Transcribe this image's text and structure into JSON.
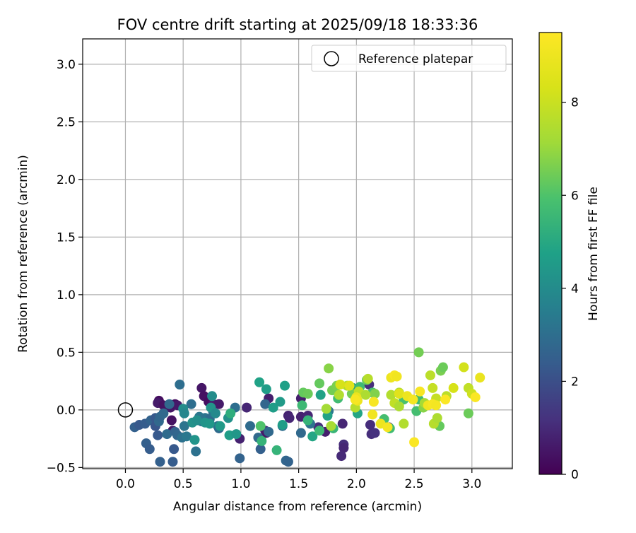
{
  "chart_data": {
    "type": "scatter",
    "title": "FOV centre drift starting at 2025/09/18 18:33:36",
    "xlabel": "Angular distance from reference (arcmin)",
    "ylabel": "Rotation from reference (arcmin)",
    "xlim": [
      -0.37,
      3.35
    ],
    "ylim": [
      -0.51,
      3.22
    ],
    "xticks": [
      0.0,
      0.5,
      1.0,
      1.5,
      2.0,
      2.5,
      3.0
    ],
    "xtick_labels": [
      "0.0",
      "0.5",
      "1.0",
      "1.5",
      "2.0",
      "2.5",
      "3.0"
    ],
    "yticks": [
      -0.5,
      0.0,
      0.5,
      1.0,
      1.5,
      2.0,
      2.5,
      3.0
    ],
    "ytick_labels": [
      "−0.5",
      "0.0",
      "0.5",
      "1.0",
      "1.5",
      "2.0",
      "2.5",
      "3.0"
    ],
    "grid": true,
    "legend": {
      "position": "top-right",
      "entries": [
        "Reference platepar"
      ]
    },
    "reference": {
      "label": "Reference platepar",
      "x": 0.0,
      "y": 0.0
    },
    "colorbar": {
      "label": "Hours from first FF file",
      "colormap": "viridis",
      "range": [
        0,
        9.5
      ],
      "ticks": [
        0,
        2,
        4,
        6,
        8
      ],
      "tick_labels": [
        "0",
        "2",
        "4",
        "6",
        "8"
      ]
    },
    "series": [
      {
        "points": [
          [
            0.29,
            0.08,
            0.3
          ],
          [
            0.28,
            0.06,
            0.6
          ],
          [
            0.33,
            0.04,
            0.4
          ],
          [
            0.39,
            0.02,
            0.5
          ],
          [
            0.4,
            -0.09,
            0.4
          ],
          [
            0.41,
            -0.18,
            0.5
          ],
          [
            0.43,
            0.05,
            0.3
          ],
          [
            0.45,
            0.04,
            0.6
          ],
          [
            0.66,
            0.19,
            0.5
          ],
          [
            0.68,
            0.12,
            0.4
          ],
          [
            0.72,
            0.07,
            0.3
          ],
          [
            0.76,
            0.05,
            0.7
          ],
          [
            0.81,
            0.05,
            0.6
          ],
          [
            0.99,
            -0.25,
            0.8
          ],
          [
            1.05,
            0.02,
            0.9
          ],
          [
            1.21,
            -0.18,
            0.9
          ],
          [
            1.22,
            -0.2,
            0.6
          ],
          [
            1.24,
            0.1,
            0.7
          ],
          [
            1.41,
            -0.05,
            0.8
          ],
          [
            1.42,
            -0.07,
            0.9
          ],
          [
            1.52,
            0.1,
            0.7
          ],
          [
            1.52,
            -0.06,
            0.8
          ],
          [
            1.58,
            -0.05,
            0.9
          ],
          [
            1.67,
            -0.15,
            1.1
          ],
          [
            1.73,
            -0.19,
            0.7
          ],
          [
            1.88,
            -0.12,
            0.9
          ],
          [
            1.89,
            -0.3,
            1.1
          ],
          [
            1.89,
            -0.33,
            0.9
          ],
          [
            1.87,
            -0.4,
            1.0
          ],
          [
            2.11,
            0.22,
            1.1
          ],
          [
            2.12,
            -0.13,
            1.1
          ],
          [
            2.13,
            -0.21,
            1.1
          ],
          [
            2.16,
            -0.2,
            1.2
          ],
          [
            2.28,
            -0.15,
            1.2
          ]
        ]
      },
      {
        "points": [
          [
            0.08,
            -0.15,
            2.5
          ],
          [
            0.12,
            -0.13,
            2.3
          ],
          [
            0.17,
            -0.12,
            2.4
          ],
          [
            0.18,
            -0.29,
            2.5
          ],
          [
            0.21,
            -0.34,
            2.4
          ],
          [
            0.22,
            -0.09,
            2.6
          ],
          [
            0.26,
            -0.07,
            2.3
          ],
          [
            0.26,
            -0.14,
            2.2
          ],
          [
            0.28,
            -0.22,
            2.3
          ],
          [
            0.29,
            -0.1,
            2.8
          ],
          [
            0.3,
            -0.45,
            2.5
          ],
          [
            0.3,
            -0.06,
            2.7
          ],
          [
            0.33,
            -0.03,
            2.8
          ],
          [
            0.36,
            -0.21,
            2.9
          ],
          [
            0.38,
            0.05,
            2.8
          ],
          [
            0.42,
            -0.34,
            2.3
          ],
          [
            0.41,
            -0.45,
            2.4
          ],
          [
            0.43,
            -0.19,
            2.6
          ],
          [
            0.45,
            -0.22,
            2.7
          ],
          [
            0.47,
            0.22,
            3.0
          ],
          [
            0.49,
            -0.24,
            3.1
          ],
          [
            0.51,
            -0.14,
            3.2
          ],
          [
            0.53,
            -0.23,
            3.3
          ],
          [
            0.57,
            0.05,
            3.0
          ],
          [
            0.61,
            -0.36,
            3.1
          ],
          [
            0.64,
            -0.06,
            3.3
          ],
          [
            0.66,
            -0.1,
            3.2
          ],
          [
            0.69,
            -0.07,
            3.2
          ],
          [
            0.73,
            -0.08,
            2.9
          ],
          [
            0.76,
            -0.02,
            3.1
          ],
          [
            0.8,
            -0.14,
            3.0
          ],
          [
            0.81,
            -0.16,
            2.9
          ],
          [
            0.95,
            0.02,
            3.0
          ],
          [
            0.99,
            -0.42,
            2.6
          ],
          [
            1.08,
            -0.14,
            2.9
          ],
          [
            1.15,
            -0.24,
            2.8
          ],
          [
            1.17,
            -0.34,
            2.5
          ],
          [
            1.21,
            0.05,
            2.7
          ],
          [
            1.24,
            -0.19,
            2.8
          ],
          [
            1.36,
            -0.14,
            3.0
          ],
          [
            1.39,
            -0.44,
            2.7
          ],
          [
            1.41,
            -0.45,
            2.6
          ],
          [
            1.52,
            -0.2,
            2.8
          ],
          [
            1.6,
            -0.12,
            3.2
          ],
          [
            1.76,
            -0.01,
            3.3
          ]
        ]
      },
      {
        "points": [
          [
            0.5,
            0.01,
            4.0
          ],
          [
            0.51,
            -0.03,
            3.8
          ],
          [
            0.58,
            -0.11,
            4.2
          ],
          [
            0.6,
            -0.26,
            4.3
          ],
          [
            0.62,
            -0.09,
            4.1
          ],
          [
            0.69,
            -0.11,
            4.3
          ],
          [
            0.73,
            -0.12,
            4.4
          ],
          [
            0.74,
            0.02,
            4.3
          ],
          [
            0.75,
            0.12,
            4.0
          ],
          [
            0.78,
            -0.03,
            3.9
          ],
          [
            0.82,
            -0.14,
            4.5
          ],
          [
            0.89,
            -0.07,
            4.2
          ],
          [
            0.9,
            -0.22,
            4.6
          ],
          [
            0.96,
            -0.21,
            4.4
          ],
          [
            1.16,
            0.24,
            4.8
          ],
          [
            1.22,
            0.18,
            4.6
          ],
          [
            1.28,
            0.02,
            4.6
          ],
          [
            1.34,
            0.07,
            4.5
          ],
          [
            1.36,
            -0.13,
            4.6
          ],
          [
            1.38,
            0.21,
            4.7
          ],
          [
            1.62,
            -0.23,
            4.9
          ],
          [
            1.69,
            0.13,
            4.8
          ],
          [
            1.75,
            -0.05,
            4.8
          ],
          [
            1.97,
            0.19,
            4.6
          ],
          [
            2.01,
            -0.03,
            4.9
          ]
        ]
      },
      {
        "points": [
          [
            0.91,
            -0.03,
            5.2
          ],
          [
            1.18,
            -0.27,
            5.4
          ],
          [
            1.31,
            -0.35,
            5.4
          ],
          [
            1.53,
            0.04,
            5.6
          ],
          [
            1.58,
            -0.09,
            5.4
          ],
          [
            1.68,
            -0.18,
            5.6
          ],
          [
            1.8,
            -0.16,
            5.5
          ],
          [
            1.84,
            0.1,
            5.7
          ],
          [
            2.03,
            0.2,
            5.6
          ],
          [
            2.14,
            0.15,
            5.9
          ],
          [
            2.24,
            -0.08,
            5.8
          ],
          [
            2.29,
            -0.16,
            5.7
          ],
          [
            2.41,
            0.09,
            5.9
          ],
          [
            2.52,
            -0.01,
            5.8
          ],
          [
            2.54,
            0.09,
            5.7
          ]
        ]
      },
      {
        "points": [
          [
            1.17,
            -0.14,
            6.0
          ],
          [
            1.54,
            0.15,
            6.3
          ],
          [
            1.58,
            0.14,
            6.4
          ],
          [
            1.68,
            0.23,
            6.3
          ],
          [
            1.76,
            0.36,
            6.8
          ],
          [
            1.79,
            0.17,
            6.5
          ],
          [
            1.83,
            0.21,
            6.6
          ],
          [
            1.96,
            0.14,
            6.5
          ],
          [
            2.09,
            0.26,
            6.4
          ],
          [
            2.16,
            0.14,
            6.7
          ],
          [
            2.54,
            0.5,
            6.5
          ],
          [
            2.58,
            0.02,
            6.8
          ],
          [
            2.73,
            0.34,
            6.6
          ],
          [
            2.75,
            0.37,
            6.4
          ],
          [
            2.72,
            -0.14,
            6.3
          ],
          [
            2.97,
            -0.03,
            6.4
          ]
        ]
      },
      {
        "points": [
          [
            1.74,
            0.01,
            7.2
          ],
          [
            1.78,
            -0.14,
            7.3
          ],
          [
            1.85,
            0.13,
            7.5
          ],
          [
            1.92,
            0.21,
            7.4
          ],
          [
            1.99,
            0.02,
            7.6
          ],
          [
            2.02,
            0.16,
            7.8
          ],
          [
            2.08,
            0.13,
            7.4
          ],
          [
            2.1,
            0.27,
            7.6
          ],
          [
            2.3,
            0.13,
            7.5
          ],
          [
            2.33,
            0.06,
            7.8
          ],
          [
            2.37,
            0.15,
            7.6
          ],
          [
            2.37,
            0.03,
            7.4
          ],
          [
            2.41,
            -0.12,
            7.5
          ],
          [
            2.59,
            0.06,
            7.3
          ],
          [
            2.64,
            0.3,
            7.7
          ],
          [
            2.66,
            0.19,
            7.9
          ],
          [
            2.67,
            -0.12,
            7.6
          ],
          [
            2.69,
            0.1,
            7.9
          ],
          [
            2.7,
            -0.07,
            7.4
          ],
          [
            2.78,
            0.12,
            7.7
          ],
          [
            2.84,
            0.19,
            8.3
          ],
          [
            2.93,
            0.37,
            8.2
          ],
          [
            2.97,
            0.19,
            7.8
          ],
          [
            3.0,
            0.14,
            8.1
          ],
          [
            1.86,
            0.22,
            8.3
          ]
        ]
      },
      {
        "points": [
          [
            1.94,
            0.21,
            8.6
          ],
          [
            2.0,
            0.11,
            8.9
          ],
          [
            2.01,
            0.08,
            9.0
          ],
          [
            2.14,
            -0.04,
            9.1
          ],
          [
            2.15,
            0.07,
            9.3
          ],
          [
            2.21,
            -0.12,
            9.0
          ],
          [
            2.27,
            -0.15,
            9.2
          ],
          [
            2.3,
            0.28,
            9.0
          ],
          [
            2.33,
            0.3,
            9.3
          ],
          [
            2.35,
            0.29,
            9.1
          ],
          [
            2.37,
            0.14,
            8.6
          ],
          [
            2.44,
            0.12,
            9.0
          ],
          [
            2.49,
            0.09,
            9.2
          ],
          [
            2.5,
            -0.28,
            9.4
          ],
          [
            2.55,
            0.16,
            9.3
          ],
          [
            2.62,
            0.04,
            9.1
          ],
          [
            2.66,
            0.05,
            9.3
          ],
          [
            2.69,
            0.04,
            9.2
          ],
          [
            2.77,
            0.09,
            9.4
          ],
          [
            3.03,
            0.11,
            9.4
          ],
          [
            3.07,
            0.28,
            8.9
          ],
          [
            1.99,
            0.09,
            9.3
          ]
        ]
      }
    ]
  }
}
